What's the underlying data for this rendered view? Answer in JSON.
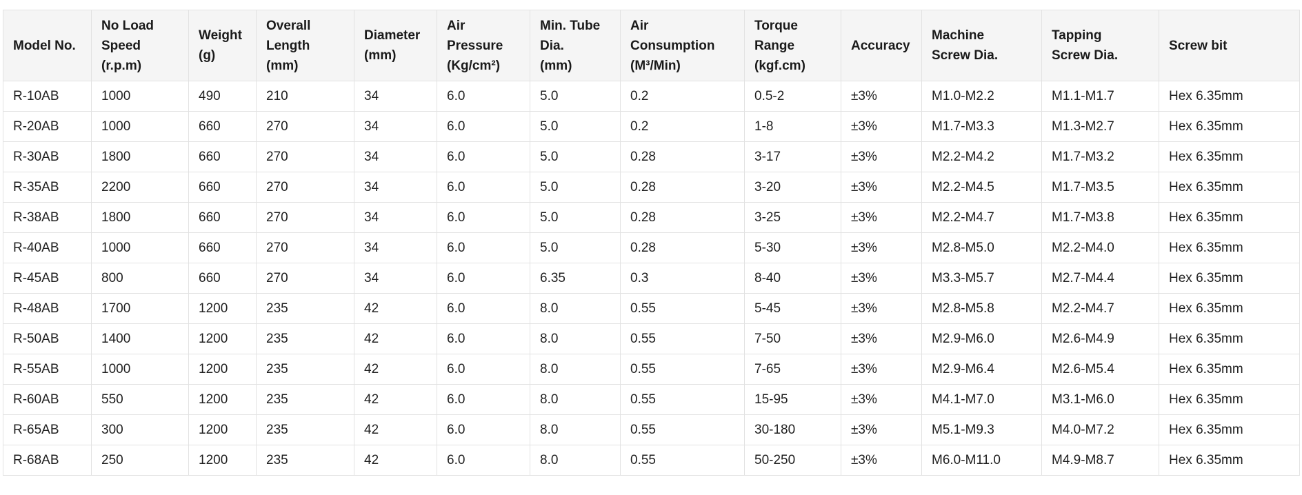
{
  "table": {
    "headers": [
      "Model No.",
      "No Load\nSpeed\n(r.p.m)",
      "Weight\n(g)",
      "Overall\nLength\n(mm)",
      "Diameter\n(mm)",
      "Air\nPressure\n(Kg/cm²)",
      "Min. Tube\nDia.\n(mm)",
      "Air\nConsumption\n(M³/Min)",
      "Torque\nRange\n(kgf.cm)",
      "Accuracy",
      "Machine\nScrew Dia.",
      "Tapping\nScrew Dia.",
      "Screw bit"
    ],
    "rows": [
      [
        "R-10AB",
        "1000",
        "490",
        "210",
        "34",
        "6.0",
        "5.0",
        "0.2",
        "0.5-2",
        "±3%",
        "M1.0-M2.2",
        "M1.1-M1.7",
        "Hex 6.35mm"
      ],
      [
        "R-20AB",
        "1000",
        "660",
        "270",
        "34",
        "6.0",
        "5.0",
        "0.2",
        "1-8",
        "±3%",
        "M1.7-M3.3",
        "M1.3-M2.7",
        "Hex 6.35mm"
      ],
      [
        "R-30AB",
        "1800",
        "660",
        "270",
        "34",
        "6.0",
        "5.0",
        "0.28",
        "3-17",
        "±3%",
        "M2.2-M4.2",
        "M1.7-M3.2",
        "Hex 6.35mm"
      ],
      [
        "R-35AB",
        "2200",
        "660",
        "270",
        "34",
        "6.0",
        "5.0",
        "0.28",
        "3-20",
        "±3%",
        "M2.2-M4.5",
        "M1.7-M3.5",
        "Hex 6.35mm"
      ],
      [
        "R-38AB",
        "1800",
        "660",
        "270",
        "34",
        "6.0",
        "5.0",
        "0.28",
        "3-25",
        "±3%",
        "M2.2-M4.7",
        "M1.7-M3.8",
        "Hex 6.35mm"
      ],
      [
        "R-40AB",
        "1000",
        "660",
        "270",
        "34",
        "6.0",
        "5.0",
        "0.28",
        "5-30",
        "±3%",
        "M2.8-M5.0",
        "M2.2-M4.0",
        "Hex 6.35mm"
      ],
      [
        "R-45AB",
        "800",
        "660",
        "270",
        "34",
        "6.0",
        "6.35",
        "0.3",
        "8-40",
        "±3%",
        "M3.3-M5.7",
        "M2.7-M4.4",
        "Hex 6.35mm"
      ],
      [
        "R-48AB",
        "1700",
        "1200",
        "235",
        "42",
        "6.0",
        "8.0",
        "0.55",
        "5-45",
        "±3%",
        "M2.8-M5.8",
        "M2.2-M4.7",
        "Hex 6.35mm"
      ],
      [
        "R-50AB",
        "1400",
        "1200",
        "235",
        "42",
        "6.0",
        "8.0",
        "0.55",
        "7-50",
        "±3%",
        "M2.9-M6.0",
        "M2.6-M4.9",
        "Hex 6.35mm"
      ],
      [
        "R-55AB",
        "1000",
        "1200",
        "235",
        "42",
        "6.0",
        "8.0",
        "0.55",
        "7-65",
        "±3%",
        "M2.9-M6.4",
        "M2.6-M5.4",
        "Hex 6.35mm"
      ],
      [
        "R-60AB",
        "550",
        "1200",
        "235",
        "42",
        "6.0",
        "8.0",
        "0.55",
        "15-95",
        "±3%",
        "M4.1-M7.0",
        "M3.1-M6.0",
        "Hex 6.35mm"
      ],
      [
        "R-65AB",
        "300",
        "1200",
        "235",
        "42",
        "6.0",
        "8.0",
        "0.55",
        "30-180",
        "±3%",
        "M5.1-M9.3",
        "M4.0-M7.2",
        "Hex 6.35mm"
      ],
      [
        "R-68AB",
        "250",
        "1200",
        "235",
        "42",
        "6.0",
        "8.0",
        "0.55",
        "50-250",
        "±3%",
        "M6.0-M11.0",
        "M4.9-M8.7",
        "Hex 6.35mm"
      ]
    ]
  },
  "colors": {
    "header_bg": "#f5f5f5",
    "border": "#e2e2e2",
    "text": "#1f1f1f"
  }
}
